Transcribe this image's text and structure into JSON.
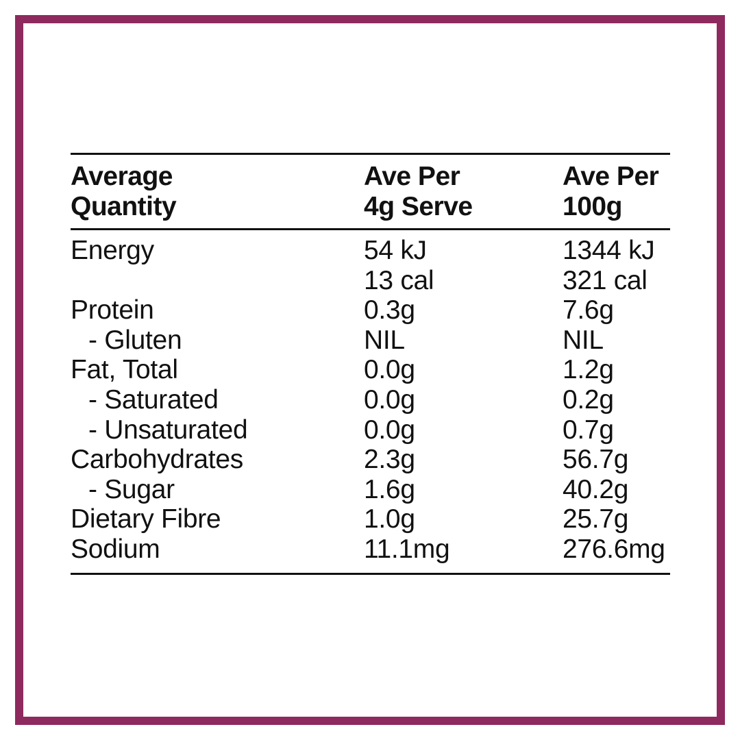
{
  "colors": {
    "frame": "#8e2a5e",
    "text": "#111111",
    "background": "#ffffff"
  },
  "header": {
    "col1": [
      "Average",
      "Quantity"
    ],
    "col2": [
      "Ave Per",
      "4g Serve"
    ],
    "col3": [
      "Ave Per",
      "100g"
    ]
  },
  "rows": [
    {
      "label": "Energy",
      "serve": "54 kJ",
      "per100": "1344 kJ"
    },
    {
      "label": "",
      "serve": "13 cal",
      "per100": "321 cal"
    },
    {
      "label": "Protein",
      "serve": "0.3g",
      "per100": "7.6g"
    },
    {
      "label": "- Gluten",
      "serve": "NIL",
      "per100": "NIL"
    },
    {
      "label": "Fat, Total",
      "serve": "0.0g",
      "per100": "1.2g"
    },
    {
      "label": "- Saturated",
      "serve": "0.0g",
      "per100": "0.2g"
    },
    {
      "label": "- Unsaturated",
      "serve": "0.0g",
      "per100": "0.7g"
    },
    {
      "label": "Carbohydrates",
      "serve": "2.3g",
      "per100": "56.7g"
    },
    {
      "label": "- Sugar",
      "serve": "1.6g",
      "per100": "40.2g"
    },
    {
      "label": "Dietary Fibre",
      "serve": "1.0g",
      "per100": "25.7g"
    },
    {
      "label": "Sodium",
      "serve": "11.1mg",
      "per100": "276.6mg"
    }
  ]
}
